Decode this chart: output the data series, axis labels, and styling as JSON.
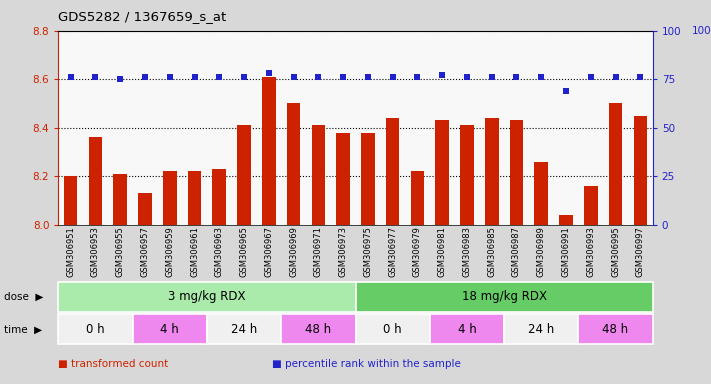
{
  "title": "GDS5282 / 1367659_s_at",
  "samples": [
    "GSM306951",
    "GSM306953",
    "GSM306955",
    "GSM306957",
    "GSM306959",
    "GSM306961",
    "GSM306963",
    "GSM306965",
    "GSM306967",
    "GSM306969",
    "GSM306971",
    "GSM306973",
    "GSM306975",
    "GSM306977",
    "GSM306979",
    "GSM306981",
    "GSM306983",
    "GSM306985",
    "GSM306987",
    "GSM306989",
    "GSM306991",
    "GSM306993",
    "GSM306995",
    "GSM306997"
  ],
  "bar_values": [
    8.2,
    8.36,
    8.21,
    8.13,
    8.22,
    8.22,
    8.23,
    8.41,
    8.61,
    8.5,
    8.41,
    8.38,
    8.38,
    8.44,
    8.22,
    8.43,
    8.41,
    8.44,
    8.43,
    8.26,
    8.04,
    8.16,
    8.5,
    8.45
  ],
  "percentile_values": [
    76,
    76,
    75,
    76,
    76,
    76,
    76,
    76,
    78,
    76,
    76,
    76,
    76,
    76,
    76,
    77,
    76,
    76,
    76,
    76,
    69,
    76,
    76,
    76
  ],
  "bar_color": "#cc2200",
  "dot_color": "#2222cc",
  "ylim_left": [
    8.0,
    8.8
  ],
  "ylim_right": [
    0,
    100
  ],
  "yticks_left": [
    8.0,
    8.2,
    8.4,
    8.6,
    8.8
  ],
  "yticks_right": [
    0,
    25,
    50,
    75,
    100
  ],
  "left_tick_color": "#cc2200",
  "right_tick_color": "#2222cc",
  "plot_bg": "#f8f8f8",
  "fig_bg": "#d8d8d8",
  "sample_row_bg": "#d8d8d8",
  "dose_groups": [
    {
      "text": "3 mg/kg RDX",
      "start": 0,
      "end": 12,
      "color": "#aaeaaa"
    },
    {
      "text": "18 mg/kg RDX",
      "start": 12,
      "end": 24,
      "color": "#66cc66"
    }
  ],
  "time_groups": [
    {
      "text": "0 h",
      "start": 0,
      "end": 3,
      "color": "#f0f0f0"
    },
    {
      "text": "4 h",
      "start": 3,
      "end": 6,
      "color": "#ee88ee"
    },
    {
      "text": "24 h",
      "start": 6,
      "end": 9,
      "color": "#f0f0f0"
    },
    {
      "text": "48 h",
      "start": 9,
      "end": 12,
      "color": "#ee88ee"
    },
    {
      "text": "0 h",
      "start": 12,
      "end": 15,
      "color": "#f0f0f0"
    },
    {
      "text": "4 h",
      "start": 15,
      "end": 18,
      "color": "#ee88ee"
    },
    {
      "text": "24 h",
      "start": 18,
      "end": 21,
      "color": "#f0f0f0"
    },
    {
      "text": "48 h",
      "start": 21,
      "end": 24,
      "color": "#ee88ee"
    }
  ],
  "legend": [
    {
      "color": "#cc2200",
      "label": "transformed count"
    },
    {
      "color": "#2222cc",
      "label": "percentile rank within the sample"
    }
  ]
}
